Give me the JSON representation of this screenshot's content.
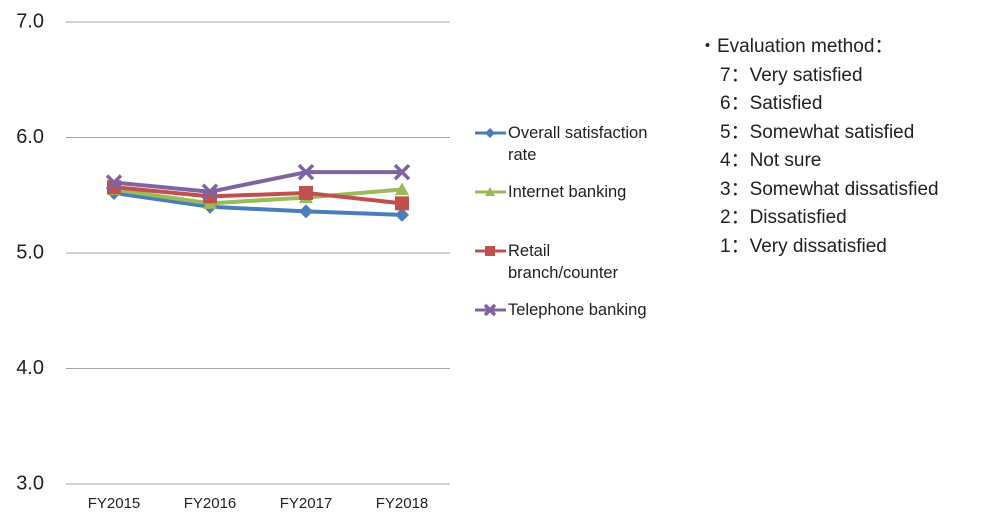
{
  "chart_data": {
    "type": "line",
    "categories": [
      "FY2015",
      "FY2016",
      "FY2017",
      "FY2018"
    ],
    "series": [
      {
        "name": "Overall satisfaction rate",
        "color": "#4a7ebb",
        "marker": "diamond",
        "values": [
          5.52,
          5.4,
          5.36,
          5.33
        ]
      },
      {
        "name": "Internet banking",
        "color": "#9bbb59",
        "marker": "triangle",
        "values": [
          5.55,
          5.43,
          5.48,
          5.55
        ]
      },
      {
        "name": "Retail branch/counter",
        "color": "#c0504d",
        "marker": "square",
        "values": [
          5.57,
          5.49,
          5.52,
          5.43
        ]
      },
      {
        "name": "Telephone banking",
        "color": "#8064a2",
        "marker": "x",
        "values": [
          5.61,
          5.53,
          5.7,
          5.7
        ]
      }
    ],
    "ylim": [
      3,
      7
    ],
    "yticks": [
      {
        "value": 3,
        "label": "3.0"
      },
      {
        "value": 4,
        "label": "4.0"
      },
      {
        "value": 5,
        "label": "5.0"
      },
      {
        "value": 6,
        "label": "6.0"
      },
      {
        "value": 7,
        "label": "7.0"
      }
    ],
    "grid": true,
    "legend": "right",
    "annotation": {
      "heading": "・Evaluation method：",
      "items": [
        "7：Very satisfied",
        "6：Satisfied",
        "5：Somewhat satisfied",
        "4：Not sure",
        "3：Somewhat dissatisfied",
        "2：Dissatisfied",
        "1：Very dissatisfied"
      ]
    }
  }
}
